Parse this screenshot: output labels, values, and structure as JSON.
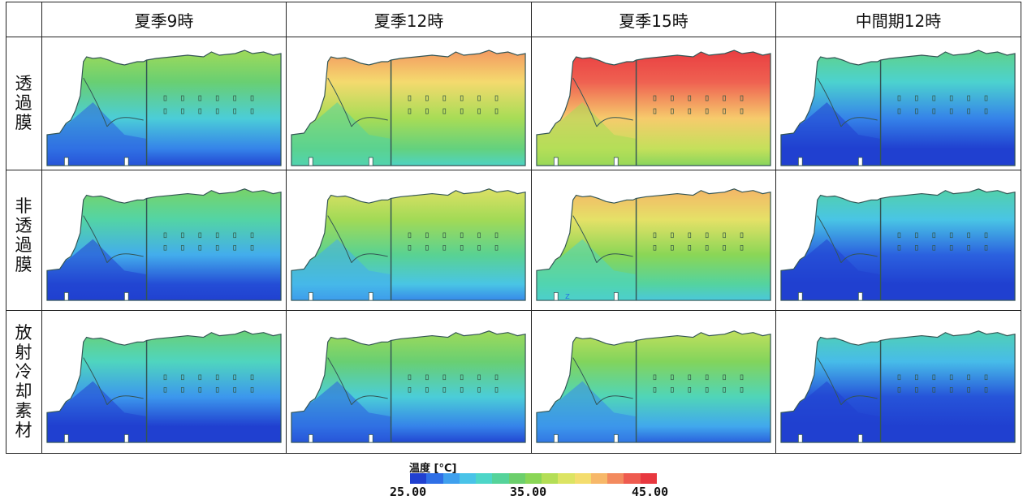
{
  "columns": [
    "夏季9時",
    "夏季12時",
    "夏季15時",
    "中間期12時"
  ],
  "rows": [
    {
      "label": "透過膜",
      "chars": [
        "透",
        "過",
        "膜"
      ]
    },
    {
      "label": "非透過膜",
      "chars": [
        "非",
        "透",
        "過",
        "膜"
      ]
    },
    {
      "label": "放射冷却素材",
      "chars": [
        "放",
        "射",
        "冷",
        "却",
        "素",
        "材"
      ]
    }
  ],
  "cells": [
    [
      {
        "heat": 0.3
      },
      {
        "heat": 0.6
      },
      {
        "heat": 0.8
      },
      {
        "heat": 0.15
      }
    ],
    [
      {
        "heat": 0.22
      },
      {
        "heat": 0.42
      },
      {
        "heat": 0.55
      },
      {
        "heat": 0.1
      }
    ],
    [
      {
        "heat": 0.18
      },
      {
        "heat": 0.3
      },
      {
        "heat": 0.36
      },
      {
        "heat": 0.08
      }
    ]
  ],
  "legend": {
    "title": "温度 [°C]",
    "min_label": "25.00",
    "mid_label": "35.00",
    "max_label": "45.00",
    "colors": [
      "#2040d0",
      "#2f6fe6",
      "#3fa0ee",
      "#49c3e8",
      "#4dd6c8",
      "#55d39a",
      "#6ccf6c",
      "#8ad656",
      "#b4de56",
      "#dce463",
      "#f4dd6e",
      "#f7b869",
      "#f38a5e",
      "#ee5b4f",
      "#e8383f"
    ]
  },
  "annotation": "z"
}
